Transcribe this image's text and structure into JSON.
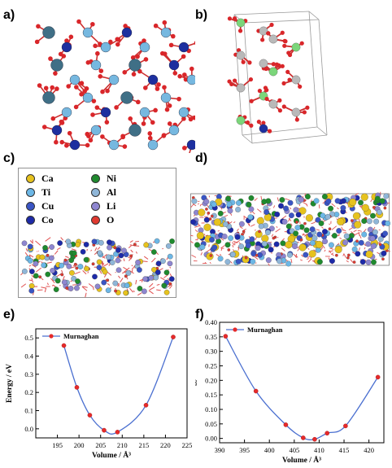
{
  "panels": {
    "a": {
      "label": "a)"
    },
    "b": {
      "label": "b)"
    },
    "c": {
      "label": "c)"
    },
    "d": {
      "label": "d)"
    },
    "e": {
      "label": "e)"
    },
    "f": {
      "label": "f)"
    }
  },
  "legend_c": [
    {
      "name": "Ca",
      "color": "#e6c21e"
    },
    {
      "name": "Ni",
      "color": "#1f8a2e"
    },
    {
      "name": "Ti",
      "color": "#6cb7e6"
    },
    {
      "name": "Al",
      "color": "#8fb6d8"
    },
    {
      "name": "Cu",
      "color": "#3a55c4"
    },
    {
      "name": "Li",
      "color": "#8e86d0"
    },
    {
      "name": "Co",
      "color": "#1d2aa8"
    },
    {
      "name": "O",
      "color": "#e03a30"
    }
  ],
  "atom_colors": {
    "oxygen": "#d9262a",
    "metal_a": "#3f6f86",
    "metal_b": "#76b8e0",
    "metal_c": "#1d2f9f",
    "metal_green": "#7bd67a",
    "metal_gray": "#b9b9b9"
  },
  "chart_data": [
    {
      "type": "scatter",
      "panel": "e",
      "series": [
        {
          "name": "Murnaghan",
          "x": [
            196.5,
            199.5,
            202.5,
            205.8,
            208.9,
            215.5,
            221.8
          ],
          "y": [
            0.458,
            0.228,
            0.075,
            -0.008,
            -0.018,
            0.13,
            0.505
          ]
        }
      ],
      "xlabel": "Volume / Å³",
      "ylabel": "Energy / eV",
      "xlim": [
        190,
        225
      ],
      "ylim": [
        -0.05,
        0.55
      ],
      "xticks": [
        "195",
        "200",
        "205",
        "210",
        "215",
        "220",
        "225"
      ],
      "yticks": [
        "0.0",
        "0.1",
        "0.2",
        "0.3",
        "0.4",
        "0.5"
      ],
      "line_color": "#4a6fd0",
      "marker_color": "#e62a2a",
      "legend_placement": "top-left"
    },
    {
      "type": "scatter",
      "panel": "f",
      "series": [
        {
          "name": "Murnaghan",
          "x": [
            391.2,
            397.3,
            403.3,
            406.8,
            409.1,
            411.6,
            415.3,
            421.8
          ],
          "y": [
            0.352,
            0.163,
            0.047,
            0.002,
            -0.003,
            0.018,
            0.043,
            0.211
          ]
        }
      ],
      "xlabel": "Volume / Å³",
      "ylabel": "Energy / eV",
      "xlim": [
        390,
        423
      ],
      "ylim": [
        -0.015,
        0.4
      ],
      "xticks": [
        "390",
        "395",
        "400",
        "405",
        "410",
        "415",
        "420"
      ],
      "yticks": [
        "0.00",
        "0.05",
        "0.10",
        "0.15",
        "0.20",
        "0.25",
        "0.30",
        "0.35",
        "0.40"
      ],
      "line_color": "#4a6fd0",
      "marker_color": "#e62a2a",
      "legend_placement": "top-left"
    }
  ]
}
